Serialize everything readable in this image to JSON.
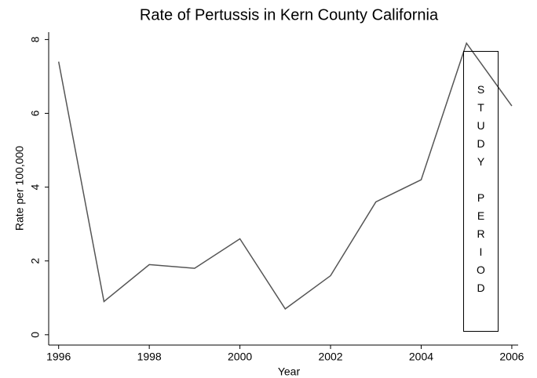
{
  "chart_data": {
    "type": "line",
    "title": "Rate of Pertussis in Kern County California",
    "x_label": "Year",
    "y_label": "Rate per 100,000",
    "x": [
      1996,
      1997,
      1998,
      1999,
      2000,
      2001,
      2002,
      2003,
      2004,
      2005,
      2006
    ],
    "series": [
      {
        "name": "Rate",
        "color": "#555555",
        "values": [
          7.4,
          0.9,
          1.9,
          1.8,
          2.6,
          0.7,
          1.6,
          3.6,
          4.2,
          7.9,
          6.2
        ]
      }
    ],
    "xlim": [
      1995.78,
      2006.14
    ],
    "xticks": [
      1996,
      1998,
      2000,
      2002,
      2004,
      2006
    ],
    "ylim": [
      -0.28,
      8.2
    ],
    "yticks": [
      0,
      2,
      4,
      6,
      8
    ],
    "annotation": "STUDY PERIOD",
    "grid": false
  }
}
